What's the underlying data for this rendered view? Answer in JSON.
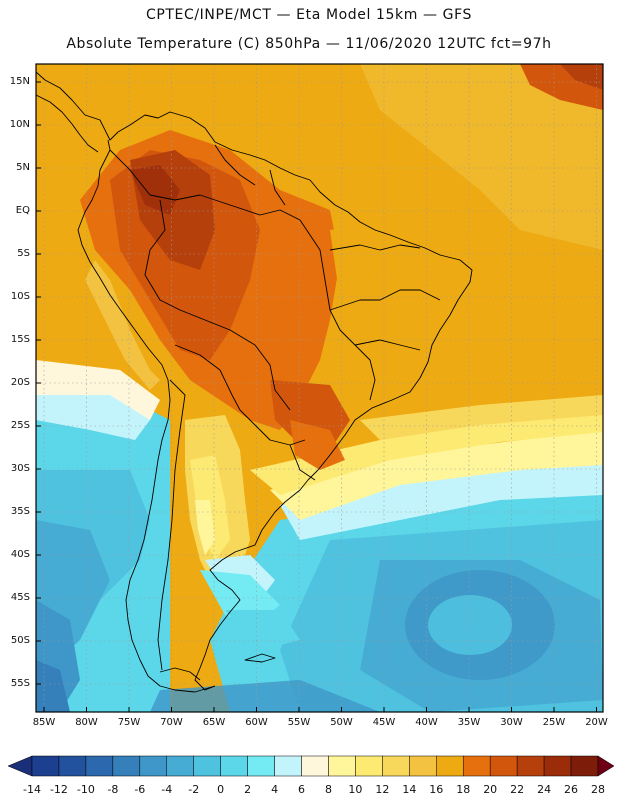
{
  "title_line1": "CPTEC/INPE/MCT —  Eta Model 15km — GFS",
  "title_line2": "Absolute Temperature (C) 850hPa — 11/06/2020 12UTC fct=97h",
  "lat_labels": [
    "15N",
    "10N",
    "5N",
    "EQ",
    "5S",
    "10S",
    "15S",
    "20S",
    "25S",
    "30S",
    "35S",
    "40S",
    "45S",
    "50S",
    "55S"
  ],
  "lon_labels": [
    "85W",
    "80W",
    "75W",
    "70W",
    "65W",
    "60W",
    "55W",
    "50W",
    "45W",
    "40W",
    "35W",
    "30W",
    "25W",
    "20W"
  ],
  "colorbar": {
    "labels": [
      "-14",
      "-12",
      "-10",
      "-8",
      "-6",
      "-4",
      "-2",
      "0",
      "2",
      "4",
      "6",
      "8",
      "10",
      "12",
      "14",
      "16",
      "18",
      "20",
      "22",
      "24",
      "26",
      "28"
    ],
    "colors": [
      "#1c3f8f",
      "#22529e",
      "#2b68ad",
      "#3580bb",
      "#3e97c8",
      "#46acd4",
      "#4fc2df",
      "#5cd7e9",
      "#74ebf2",
      "#c4f4fb",
      "#fff7dc",
      "#fff59a",
      "#fdea72",
      "#f8d85a",
      "#f2c240",
      "#eeaa12",
      "#e5700d",
      "#d2560c",
      "#b5400c",
      "#9a2c0a",
      "#7d1c08"
    ],
    "under_color": "#1a2f7a",
    "over_color": "#6d0014",
    "units": "C"
  },
  "colors": {
    "border": "#000000",
    "grid": "#9a9a9a"
  }
}
